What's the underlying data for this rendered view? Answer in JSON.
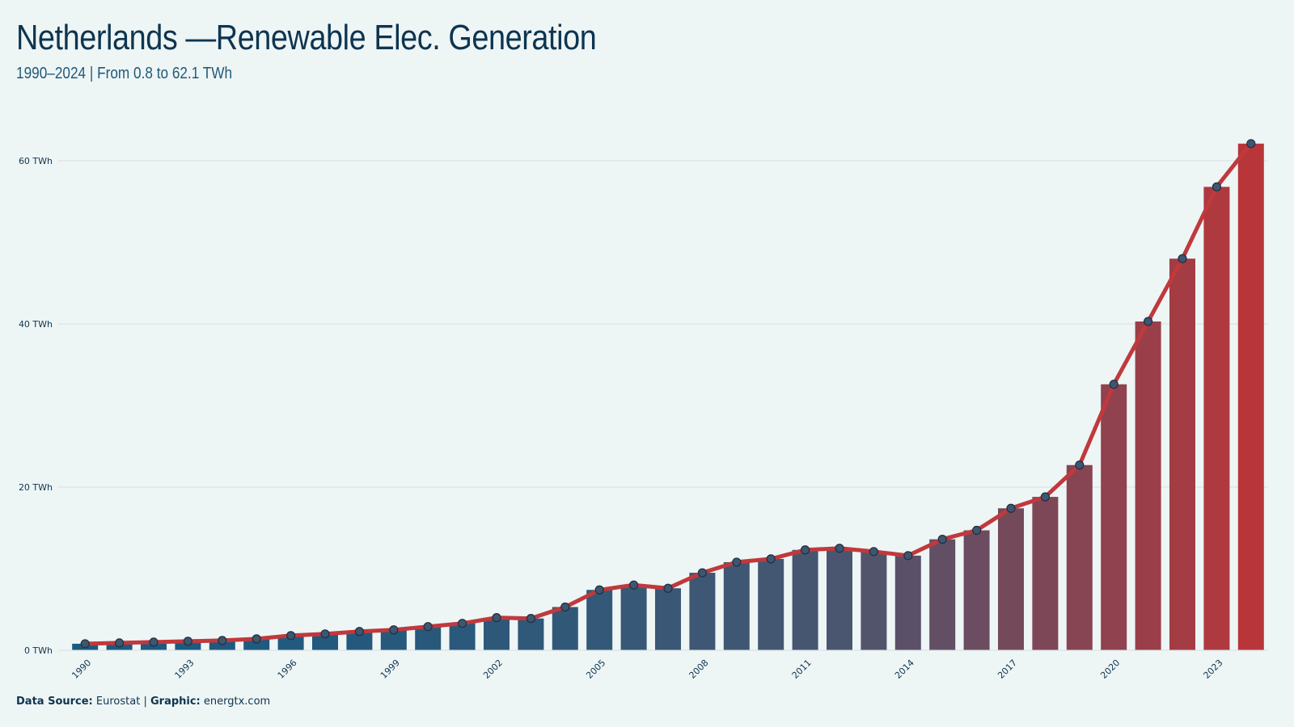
{
  "header": {
    "title": "Netherlands —Renewable Elec. Generation",
    "subtitle": "1990–2024 | From 0.8 to 62.1 TWh"
  },
  "footer": {
    "source_label": "Data Source:",
    "source_value": "Eurostat",
    "separator": "|",
    "graphic_label": "Graphic:",
    "graphic_value": "energtx.com"
  },
  "colors": {
    "background": "#eef5f5",
    "bar_start": "#1b5a80",
    "bar_mid": "#4a5670",
    "bar_end": "#b8363a",
    "line": "#c0393c",
    "marker_fill": "#3e5670",
    "grid": "#d6dfe1",
    "text": "#0d3550"
  },
  "chart_data": {
    "type": "bar",
    "overlay": "line",
    "unit": "TWh",
    "x": [
      1990,
      1991,
      1992,
      1993,
      1994,
      1995,
      1996,
      1997,
      1998,
      1999,
      2000,
      2001,
      2002,
      2003,
      2004,
      2005,
      2006,
      2007,
      2008,
      2009,
      2010,
      2011,
      2012,
      2013,
      2014,
      2015,
      2016,
      2017,
      2018,
      2019,
      2020,
      2021,
      2022,
      2023,
      2024
    ],
    "values": [
      0.8,
      0.9,
      1.0,
      1.1,
      1.2,
      1.4,
      1.8,
      2.0,
      2.3,
      2.5,
      2.9,
      3.3,
      4.0,
      3.9,
      5.3,
      7.4,
      8.0,
      7.6,
      9.5,
      10.8,
      11.2,
      12.3,
      12.5,
      12.1,
      11.6,
      13.6,
      14.7,
      17.4,
      18.8,
      22.7,
      32.6,
      40.3,
      48.0,
      56.8,
      62.1
    ],
    "x_tick_labels": [
      "1990",
      "1993",
      "1996",
      "1999",
      "2002",
      "2005",
      "2008",
      "2011",
      "2014",
      "2017",
      "2020",
      "2023"
    ],
    "y_ticks": [
      0,
      20,
      40,
      60
    ],
    "y_tick_labels": [
      "0 TWh",
      "20 TWh",
      "40 TWh",
      "60 TWh"
    ],
    "ylim": [
      0,
      65
    ],
    "grid": true,
    "title": "Netherlands —Renewable Elec. Generation",
    "subtitle": "1990–2024 | From 0.8 to 62.1 TWh",
    "xlabel": "",
    "ylabel": ""
  }
}
